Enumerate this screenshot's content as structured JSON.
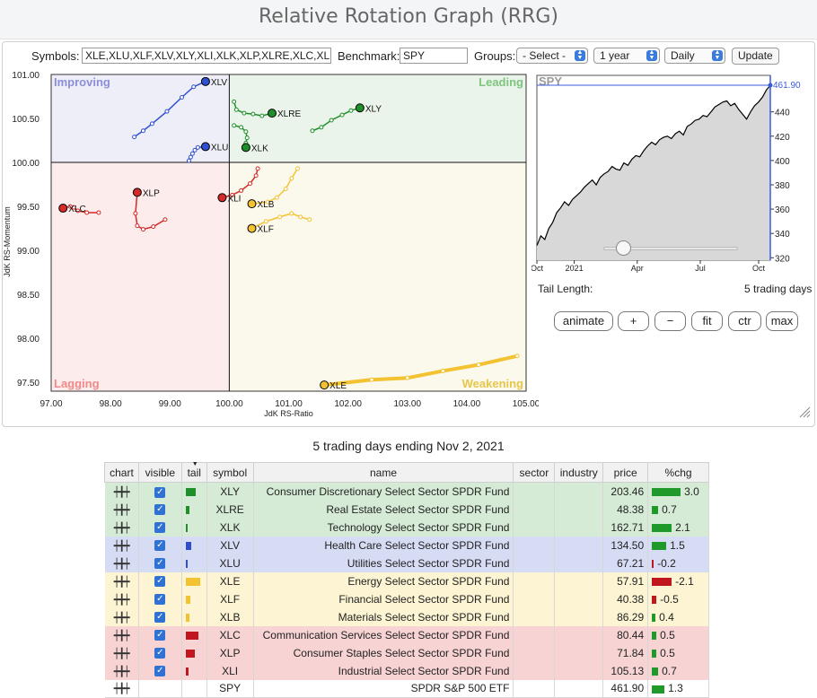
{
  "page_title": "Relative Rotation Graph (RRG)",
  "controls": {
    "symbols_label": "Symbols:",
    "symbols_value": "XLE,XLU,XLF,XLV,XLY,XLI,XLK,XLP,XLRE,XLC,XLB",
    "benchmark_label": "Benchmark:",
    "benchmark_value": "SPY",
    "groups_label": "Groups:",
    "groups_value": "- Select -",
    "period_value": "1 year",
    "frequency_value": "Daily",
    "update_label": "Update"
  },
  "rrg": {
    "x_axis_title": "JdK RS-Ratio",
    "y_axis_title": "JdK RS-Momentum",
    "x_ticks": [
      "97.00",
      "98.00",
      "99.00",
      "100.00",
      "101.00",
      "102.00",
      "103.00",
      "104.00",
      "105.00"
    ],
    "y_ticks": [
      "101.00",
      "100.50",
      "100.00",
      "99.50",
      "99.00",
      "98.50",
      "98.00",
      "97.50"
    ],
    "x_range": [
      97.0,
      105.0
    ],
    "y_range": [
      97.4,
      101.0
    ],
    "quadrants": {
      "improving": "Improving",
      "leading": "Leading",
      "weakening": "Weakening",
      "lagging": "Lagging"
    },
    "quadrant_colors": {
      "improving": "#eeeef9",
      "leading": "#eaf4ea",
      "weakening": "#fbf8ec",
      "lagging": "#fcecec"
    },
    "quadrant_label_colors": {
      "improving": "#8a8fd8",
      "leading": "#7fc47f",
      "weakening": "#e8c64a",
      "lagging": "#ee8a8a"
    },
    "series": [
      {
        "symbol": "XLV",
        "color": "#2f4fd0",
        "tail": [
          [
            98.4,
            100.29
          ],
          [
            98.55,
            100.36
          ],
          [
            98.7,
            100.44
          ],
          [
            98.95,
            100.58
          ],
          [
            99.2,
            100.74
          ],
          [
            99.4,
            100.86
          ],
          [
            99.6,
            100.92
          ]
        ]
      },
      {
        "symbol": "XLU",
        "color": "#2f4fd0",
        "tail": [
          [
            99.32,
            100.02
          ],
          [
            99.35,
            100.06
          ],
          [
            99.38,
            100.1
          ],
          [
            99.42,
            100.14
          ],
          [
            99.47,
            100.17
          ],
          [
            99.6,
            100.18
          ]
        ]
      },
      {
        "symbol": "XLRE",
        "color": "#1f8f2a",
        "tail": [
          [
            100.08,
            100.69
          ],
          [
            100.12,
            100.6
          ],
          [
            100.25,
            100.56
          ],
          [
            100.4,
            100.55
          ],
          [
            100.55,
            100.53
          ],
          [
            100.72,
            100.56
          ]
        ]
      },
      {
        "symbol": "XLK",
        "color": "#1f8f2a",
        "tail": [
          [
            100.08,
            100.42
          ],
          [
            100.2,
            100.4
          ],
          [
            100.28,
            100.35
          ],
          [
            100.3,
            100.28
          ],
          [
            100.28,
            100.22
          ],
          [
            100.28,
            100.17
          ]
        ]
      },
      {
        "symbol": "XLY",
        "color": "#1f8f2a",
        "tail": [
          [
            101.4,
            100.36
          ],
          [
            101.55,
            100.4
          ],
          [
            101.72,
            100.48
          ],
          [
            101.9,
            100.54
          ],
          [
            102.05,
            100.59
          ],
          [
            102.2,
            100.62
          ]
        ]
      },
      {
        "symbol": "XLI",
        "color": "#d42a2a",
        "tail": [
          [
            100.48,
            99.93
          ],
          [
            100.45,
            99.85
          ],
          [
            100.35,
            99.76
          ],
          [
            100.2,
            99.68
          ],
          [
            100.05,
            99.63
          ],
          [
            99.88,
            99.6
          ]
        ]
      },
      {
        "symbol": "XLP",
        "color": "#d42a2a",
        "tail": [
          [
            98.92,
            99.35
          ],
          [
            98.72,
            99.27
          ],
          [
            98.55,
            99.24
          ],
          [
            98.45,
            99.28
          ],
          [
            98.42,
            99.42
          ],
          [
            98.45,
            99.66
          ]
        ]
      },
      {
        "symbol": "XLC",
        "color": "#d42a2a",
        "tail": [
          [
            97.8,
            99.43
          ],
          [
            97.6,
            99.43
          ],
          [
            97.45,
            99.45
          ],
          [
            97.38,
            99.49
          ],
          [
            97.32,
            99.5
          ],
          [
            97.2,
            99.48
          ]
        ]
      },
      {
        "symbol": "XLB",
        "color": "#f2c230",
        "tail": [
          [
            101.15,
            99.93
          ],
          [
            101.05,
            99.82
          ],
          [
            100.95,
            99.7
          ],
          [
            100.8,
            99.6
          ],
          [
            100.65,
            99.55
          ],
          [
            100.38,
            99.53
          ]
        ]
      },
      {
        "symbol": "XLF",
        "color": "#f2c230",
        "tail": [
          [
            101.35,
            99.35
          ],
          [
            101.2,
            99.38
          ],
          [
            101.05,
            99.42
          ],
          [
            100.85,
            99.38
          ],
          [
            100.62,
            99.33
          ],
          [
            100.38,
            99.25
          ]
        ]
      },
      {
        "symbol": "XLE",
        "color": "#f2c230",
        "tail": [
          [
            104.85,
            97.8
          ],
          [
            104.2,
            97.7
          ],
          [
            103.6,
            97.63
          ],
          [
            103.0,
            97.55
          ],
          [
            102.4,
            97.53
          ],
          [
            101.6,
            97.47
          ]
        ]
      }
    ]
  },
  "spy_chart": {
    "label": "SPY",
    "current_value": "461.90",
    "x_ticks": [
      "Oct",
      "2021",
      "Apr",
      "Jul",
      "Oct"
    ],
    "y_ticks": [
      "440",
      "420",
      "400",
      "380",
      "360",
      "340",
      "320"
    ],
    "y_range": [
      318,
      470
    ],
    "prices": [
      330,
      338,
      335,
      344,
      349,
      357,
      361,
      366,
      363,
      368,
      371,
      374,
      378,
      381,
      384,
      380,
      386,
      389,
      391,
      395,
      393,
      392,
      398,
      396,
      401,
      404,
      403,
      408,
      412,
      415,
      413,
      417,
      419,
      420,
      418,
      422,
      424,
      421,
      428,
      430,
      433,
      434,
      437,
      436,
      440,
      444,
      446,
      448,
      449,
      445,
      447,
      442,
      438,
      434,
      440,
      445,
      448,
      452,
      458,
      461.9
    ]
  },
  "tail_length": {
    "label": "Tail Length:",
    "value": "5 trading days"
  },
  "buttons": {
    "animate": "animate",
    "plus": "+",
    "minus": "−",
    "fit": "fit",
    "ctr": "ctr",
    "max": "max"
  },
  "table": {
    "subtitle": "5 trading days ending Nov 2, 2021",
    "headers": [
      "chart",
      "visible",
      "tail",
      "symbol",
      "name",
      "sector",
      "industry",
      "price",
      "%chg"
    ],
    "rows": [
      {
        "quadrant": "leading",
        "symbol": "XLY",
        "name": "Consumer Discretionary Select Sector SPDR Fund",
        "price": "203.46",
        "pct": "3.0",
        "pct_value": 3.0,
        "tail_color": "#1f8f2a",
        "tail_len": 11,
        "visible": true
      },
      {
        "quadrant": "leading",
        "symbol": "XLRE",
        "name": "Real Estate Select Sector SPDR Fund",
        "price": "48.38",
        "pct": "0.7",
        "pct_value": 0.7,
        "tail_color": "#1f8f2a",
        "tail_len": 4,
        "visible": true
      },
      {
        "quadrant": "leading",
        "symbol": "XLK",
        "name": "Technology Select Sector SPDR Fund",
        "price": "162.71",
        "pct": "2.1",
        "pct_value": 2.1,
        "tail_color": "#1f8f2a",
        "tail_len": 2,
        "visible": true
      },
      {
        "quadrant": "improving",
        "symbol": "XLV",
        "name": "Health Care Select Sector SPDR Fund",
        "price": "134.50",
        "pct": "1.5",
        "pct_value": 1.5,
        "tail_color": "#2f4fd0",
        "tail_len": 6,
        "visible": true
      },
      {
        "quadrant": "improving",
        "symbol": "XLU",
        "name": "Utilities Select Sector SPDR Fund",
        "price": "67.21",
        "pct": "-0.2",
        "pct_value": -0.2,
        "tail_color": "#2f4fd0",
        "tail_len": 2,
        "visible": true
      },
      {
        "quadrant": "weakening",
        "symbol": "XLE",
        "name": "Energy Select Sector SPDR Fund",
        "price": "57.91",
        "pct": "-2.1",
        "pct_value": -2.1,
        "tail_color": "#f2c230",
        "tail_len": 16,
        "visible": true
      },
      {
        "quadrant": "weakening",
        "symbol": "XLF",
        "name": "Financial Select Sector SPDR Fund",
        "price": "40.38",
        "pct": "-0.5",
        "pct_value": -0.5,
        "tail_color": "#f2c230",
        "tail_len": 5,
        "visible": true
      },
      {
        "quadrant": "weakening",
        "symbol": "XLB",
        "name": "Materials Select Sector SPDR Fund",
        "price": "86.29",
        "pct": "0.4",
        "pct_value": 0.4,
        "tail_color": "#f2c230",
        "tail_len": 4,
        "visible": true
      },
      {
        "quadrant": "lagging",
        "symbol": "XLC",
        "name": "Communication Services Select Sector SPDR Fund",
        "price": "80.44",
        "pct": "0.5",
        "pct_value": 0.5,
        "tail_color": "#c0171f",
        "tail_len": 14,
        "visible": true
      },
      {
        "quadrant": "lagging",
        "symbol": "XLP",
        "name": "Consumer Staples Select Sector SPDR Fund",
        "price": "71.84",
        "pct": "0.5",
        "pct_value": 0.5,
        "tail_color": "#c0171f",
        "tail_len": 10,
        "visible": true
      },
      {
        "quadrant": "lagging",
        "symbol": "XLI",
        "name": "Industrial Select Sector SPDR Fund",
        "price": "105.13",
        "pct": "0.7",
        "pct_value": 0.7,
        "tail_color": "#c0171f",
        "tail_len": 3,
        "visible": true
      },
      {
        "quadrant": "none",
        "symbol": "SPY",
        "name": "SPDR S&P 500 ETF",
        "price": "461.90",
        "pct": "1.3",
        "pct_value": 1.3,
        "tail_color": "",
        "tail_len": 0,
        "visible": false
      }
    ]
  },
  "colors": {
    "pos_bar": "#1f9a2a",
    "neg_bar": "#c0171f",
    "checkbox": "#2f72d4"
  }
}
